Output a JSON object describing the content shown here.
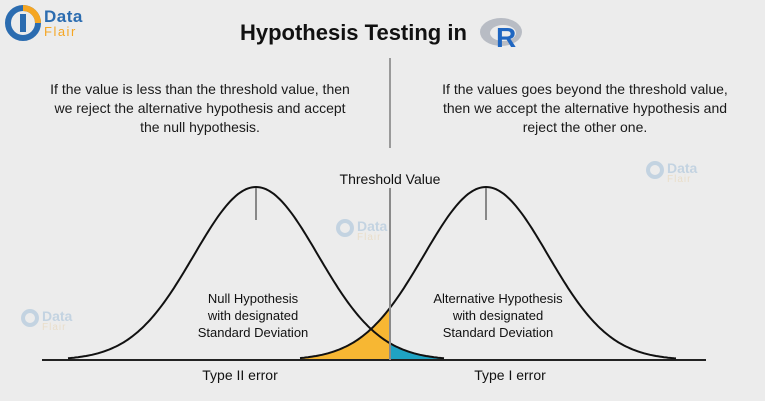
{
  "logo": {
    "line1": "Data",
    "line2": "Flair"
  },
  "title": {
    "text": "Hypothesis Testing in",
    "r_logo_letter": "R"
  },
  "left_description": "If the value is less than the threshold value, then we reject the alternative hypothesis and accept the null hypothesis.",
  "right_description": "If the values goes beyond the threshold value, then we accept the alternative hypothesis and reject the other one.",
  "diagram": {
    "threshold_label": "Threshold Value",
    "null_label": [
      "Null Hypothesis",
      "with designated",
      "Standard Deviation"
    ],
    "alt_label": [
      "Alternative Hypothesis",
      "with designated",
      "Standard Deviation"
    ],
    "type2_label": "Type II error",
    "type1_label": "Type I error",
    "colors": {
      "type2_fill": "#f7b733",
      "type1_fill": "#1fa3c4",
      "curve": "#111111"
    }
  },
  "watermarks": {
    "line1": "Data",
    "line2": "Flair"
  }
}
